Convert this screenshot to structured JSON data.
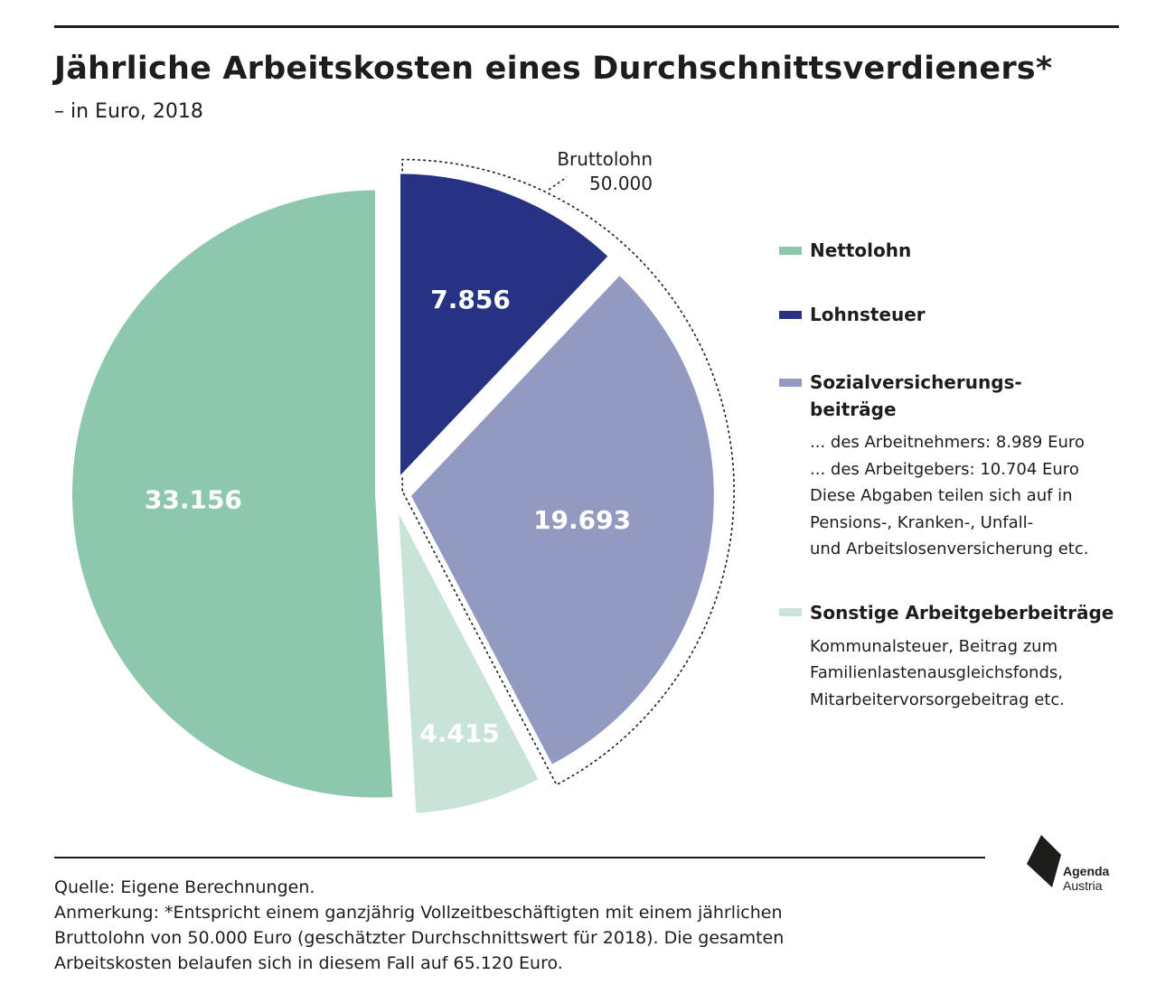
{
  "title": "Jährliche Arbeitskosten eines Durchschnittsverdieners*",
  "subtitle": "– in Euro, 2018",
  "chart_data": {
    "type": "pie",
    "total": 65120,
    "slices": [
      {
        "name": "Nettolohn",
        "value": 33156,
        "label": "33.156",
        "color": "#8dc8ae"
      },
      {
        "name": "Lohnsteuer",
        "value": 7856,
        "label": "7.856",
        "color": "#263383"
      },
      {
        "name": "Sozialversicherungsbeiträge",
        "value": 19693,
        "label": "19.693",
        "color": "#929ac1"
      },
      {
        "name": "Sonstige Arbeitgeberbeiträge",
        "value": 4415,
        "label": "4.415",
        "color": "#c7e4d6"
      }
    ],
    "callout": {
      "line1": "Bruttolohn",
      "line2": "50.000"
    }
  },
  "legend": {
    "nettolohn": {
      "label": "Nettolohn",
      "color": "#8dc8ae"
    },
    "lohnsteuer": {
      "label": "Lohnsteuer",
      "color": "#263383"
    },
    "sv": {
      "label_line1": "Sozialversicherungs-",
      "label_line2": "beiträge",
      "color": "#929ac1",
      "notes": [
        "... des Arbeitnehmers: 8.989 Euro",
        "... des Arbeitgebers: 10.704 Euro",
        "Diese Abgaben teilen sich auf in",
        "Pensions-, Kranken-, Unfall-",
        "und Arbeitslosenversicherung etc."
      ]
    },
    "sonstige": {
      "label": "Sonstige Arbeitgeberbeiträge",
      "color": "#c7e4d6",
      "notes": [
        "Kommunalsteuer, Beitrag zum",
        "Familienlastenausgleichsfonds,",
        "Mitarbeitervorsorgebeitrag etc."
      ]
    }
  },
  "footer": {
    "source": "Quelle: Eigene Berechnungen.",
    "note_lines": [
      "Anmerkung: *Entspricht einem ganzjährig Vollzeitbeschäftigten mit einem jährlichen",
      "Bruttolohn von 50.000 Euro (geschätzter Durchschnittswert für 2018). Die gesamten",
      "Arbeitskosten belaufen sich in diesem Fall auf 65.120 Euro."
    ]
  },
  "logo": {
    "line1": "Agenda",
    "line2": "Austria"
  }
}
